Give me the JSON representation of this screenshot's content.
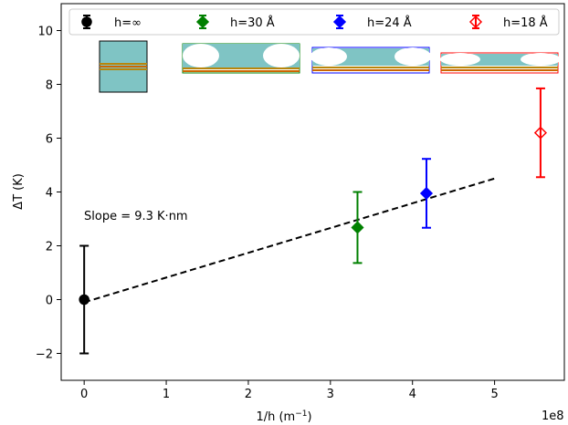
{
  "chart_data": {
    "type": "scatter",
    "xlabel": "1/h (m",
    "xlabel_sup": "−1",
    "xlabel_close": ")",
    "ylabel": "ΔT (K)",
    "x_offset_text": "1e8",
    "xlim": [
      -0.28,
      5.85
    ],
    "ylim": [
      -3.0,
      11.0
    ],
    "xticks": [
      0,
      1,
      2,
      3,
      4,
      5
    ],
    "yticks": [
      -2,
      0,
      2,
      4,
      6,
      8,
      10
    ],
    "xtick_labels": [
      "0",
      "1",
      "2",
      "3",
      "4",
      "5"
    ],
    "ytick_labels": [
      "−2",
      "0",
      "2",
      "4",
      "6",
      "8",
      "10"
    ],
    "grid": false,
    "legend_position": "top",
    "series": [
      {
        "name": "h=∞",
        "x": 0.0,
        "y": 0.0,
        "yerr": 2.0,
        "color": "#000000",
        "marker": "circle",
        "filled": true
      },
      {
        "name": "h=30 Å",
        "x": 3.33,
        "y": 2.68,
        "yerr": 1.32,
        "color": "#008000",
        "marker": "diamond",
        "filled": true
      },
      {
        "name": "h=24 Å",
        "x": 4.17,
        "y": 3.95,
        "yerr": 1.28,
        "color": "#0000ff",
        "marker": "diamond",
        "filled": true
      },
      {
        "name": "h=18 Å",
        "x": 5.56,
        "y": 6.2,
        "yerr": 1.65,
        "color": "#ff0000",
        "marker": "diamond",
        "filled": false
      }
    ],
    "fit_line": {
      "x": [
        0.0,
        5.0
      ],
      "y": [
        -0.1,
        4.5
      ],
      "style": "dashed",
      "color": "#000000"
    },
    "annotation": "Slope  = 9.3 K·nm"
  }
}
